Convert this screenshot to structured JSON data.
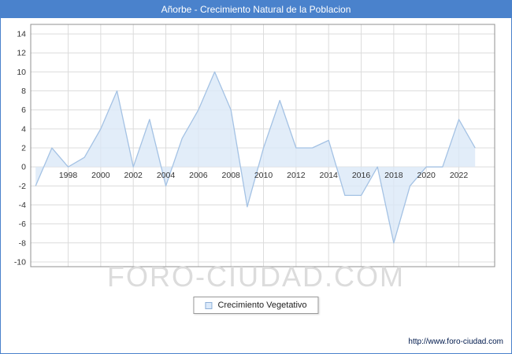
{
  "header": {
    "title": "Añorbe - Crecimiento Natural de la Poblacion",
    "bg_color": "#4a82cc"
  },
  "chart_data": {
    "type": "area",
    "title": "Añorbe - Crecimiento Natural de la Poblacion",
    "x": [
      1996,
      1997,
      1998,
      1999,
      2000,
      2001,
      2002,
      2003,
      2004,
      2005,
      2006,
      2007,
      2008,
      2009,
      2010,
      2011,
      2012,
      2013,
      2014,
      2015,
      2016,
      2017,
      2018,
      2019,
      2020,
      2021,
      2022,
      2023
    ],
    "series": [
      {
        "name": "Crecimiento Vegetativo",
        "values": [
          -2,
          2,
          0,
          1,
          4,
          8,
          0,
          5,
          -2,
          3,
          6,
          10,
          6,
          -4.2,
          2,
          7,
          2,
          2,
          2.8,
          -3,
          -3,
          0,
          -8,
          -2,
          0,
          0,
          5,
          2
        ]
      }
    ],
    "xlabel": "",
    "ylabel": "",
    "ylim": [
      -10,
      14
    ],
    "y_tick_step": 2,
    "x_ticks": [
      1998,
      2000,
      2002,
      2004,
      2006,
      2008,
      2010,
      2012,
      2014,
      2016,
      2018,
      2020,
      2022
    ],
    "grid": true,
    "legend_position": "bottom",
    "line_color": "#a4c2e4",
    "fill_color": "#dbe8f8",
    "grid_color": "#dcdcdc",
    "border_color": "#909090",
    "tick_text_color": "#333333"
  },
  "legend": {
    "label": "Crecimiento Vegetativo"
  },
  "watermark": "FORO-CIUDAD.COM",
  "footer": {
    "url": "http://www.foro-ciudad.com"
  }
}
